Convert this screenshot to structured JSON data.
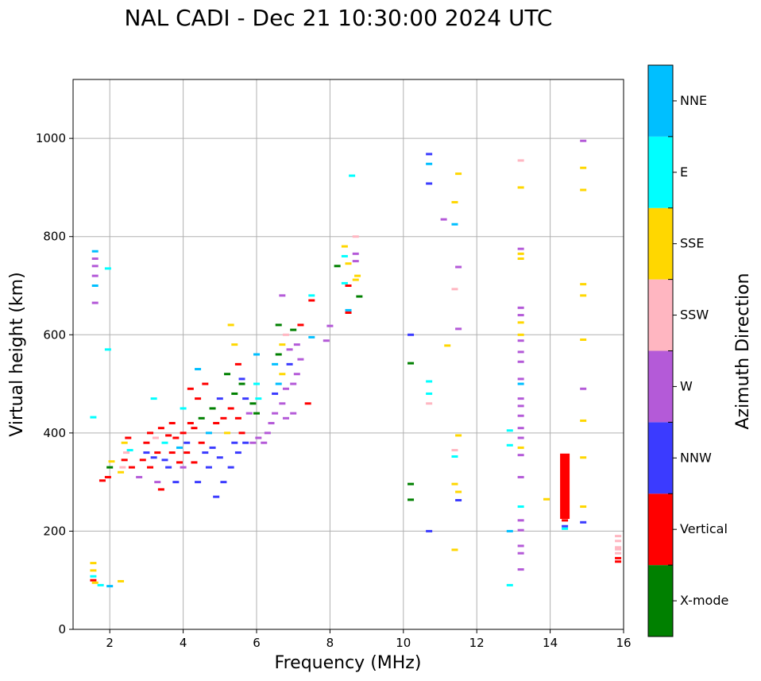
{
  "chart_data": {
    "type": "scatter",
    "title": "NAL CADI - Dec 21 10:30:00 2024 UTC",
    "xlabel": "Frequency (MHz)",
    "ylabel": "Virtual height (km)",
    "xlim": [
      1,
      16
    ],
    "ylim": [
      0,
      1120
    ],
    "xticks": [
      2,
      4,
      6,
      8,
      10,
      12,
      14,
      16
    ],
    "yticks": [
      0,
      200,
      400,
      600,
      800,
      1000
    ],
    "grid": true,
    "colorbar": {
      "label": "Azimuth Direction",
      "categories": [
        {
          "name": "X-mode",
          "color": "#008000"
        },
        {
          "name": "Vertical",
          "color": "#ff0000"
        },
        {
          "name": "NNW",
          "color": "#3b3bff"
        },
        {
          "name": "W",
          "color": "#b45ad8"
        },
        {
          "name": "SSW",
          "color": "#ffb6c1"
        },
        {
          "name": "SSE",
          "color": "#ffd700"
        },
        {
          "name": "E",
          "color": "#00ffff"
        },
        {
          "name": "NNE",
          "color": "#00bfff"
        }
      ]
    },
    "points": [
      [
        1.6,
        770,
        "NNE"
      ],
      [
        1.6,
        755,
        "W"
      ],
      [
        1.6,
        740,
        "W"
      ],
      [
        1.6,
        720,
        "W"
      ],
      [
        1.6,
        700,
        "NNE"
      ],
      [
        1.6,
        665,
        "W"
      ],
      [
        1.95,
        735,
        "E"
      ],
      [
        1.95,
        570,
        "E"
      ],
      [
        1.55,
        432,
        "E"
      ],
      [
        1.55,
        135,
        "SSE"
      ],
      [
        1.55,
        120,
        "SSE"
      ],
      [
        1.55,
        108,
        "E"
      ],
      [
        1.55,
        100,
        "Vertical"
      ],
      [
        1.6,
        95,
        "SSE"
      ],
      [
        1.75,
        90,
        "E"
      ],
      [
        2.0,
        88,
        "NNE"
      ],
      [
        2.3,
        98,
        "SSE"
      ],
      [
        1.8,
        303,
        "Vertical"
      ],
      [
        1.95,
        310,
        "Vertical"
      ],
      [
        2.0,
        330,
        "X-mode"
      ],
      [
        2.05,
        342,
        "SSE"
      ],
      [
        2.3,
        320,
        "SSE"
      ],
      [
        2.35,
        330,
        "SSW"
      ],
      [
        2.4,
        345,
        "Vertical"
      ],
      [
        2.45,
        360,
        "SSW"
      ],
      [
        2.4,
        380,
        "SSE"
      ],
      [
        2.5,
        390,
        "Vertical"
      ],
      [
        2.55,
        365,
        "E"
      ],
      [
        2.6,
        330,
        "Vertical"
      ],
      [
        2.8,
        310,
        "W"
      ],
      [
        2.9,
        345,
        "Vertical"
      ],
      [
        3.0,
        360,
        "NNW"
      ],
      [
        3.0,
        380,
        "Vertical"
      ],
      [
        3.1,
        400,
        "Vertical"
      ],
      [
        3.1,
        330,
        "Vertical"
      ],
      [
        3.2,
        350,
        "NNW"
      ],
      [
        3.25,
        390,
        "SSW"
      ],
      [
        3.3,
        360,
        "Vertical"
      ],
      [
        3.3,
        300,
        "W"
      ],
      [
        3.4,
        285,
        "Vertical"
      ],
      [
        3.4,
        410,
        "Vertical"
      ],
      [
        3.5,
        380,
        "E"
      ],
      [
        3.5,
        345,
        "NNW"
      ],
      [
        3.6,
        395,
        "Vertical"
      ],
      [
        3.6,
        330,
        "NNW"
      ],
      [
        3.7,
        360,
        "Vertical"
      ],
      [
        3.7,
        420,
        "Vertical"
      ],
      [
        3.8,
        390,
        "Vertical"
      ],
      [
        3.8,
        300,
        "NNW"
      ],
      [
        3.9,
        370,
        "NNE"
      ],
      [
        3.9,
        340,
        "Vertical"
      ],
      [
        4.0,
        400,
        "Vertical"
      ],
      [
        4.0,
        450,
        "E"
      ],
      [
        4.0,
        330,
        "W"
      ],
      [
        4.1,
        380,
        "NNW"
      ],
      [
        4.1,
        360,
        "Vertical"
      ],
      [
        4.2,
        420,
        "Vertical"
      ],
      [
        4.2,
        490,
        "Vertical"
      ],
      [
        4.3,
        340,
        "Vertical"
      ],
      [
        4.3,
        410,
        "Vertical"
      ],
      [
        4.4,
        470,
        "Vertical"
      ],
      [
        4.4,
        300,
        "NNW"
      ],
      [
        4.5,
        380,
        "Vertical"
      ],
      [
        4.5,
        430,
        "X-mode"
      ],
      [
        4.6,
        360,
        "NNW"
      ],
      [
        4.6,
        500,
        "Vertical"
      ],
      [
        4.7,
        400,
        "NNE"
      ],
      [
        4.7,
        330,
        "NNW"
      ],
      [
        4.8,
        450,
        "X-mode"
      ],
      [
        4.8,
        370,
        "NNW"
      ],
      [
        4.9,
        420,
        "Vertical"
      ],
      [
        4.9,
        270,
        "NNW"
      ],
      [
        5.0,
        470,
        "NNW"
      ],
      [
        5.0,
        350,
        "NNW"
      ],
      [
        5.1,
        430,
        "Vertical"
      ],
      [
        5.1,
        300,
        "NNW"
      ],
      [
        5.2,
        400,
        "SSE"
      ],
      [
        5.2,
        520,
        "X-mode"
      ],
      [
        5.3,
        450,
        "Vertical"
      ],
      [
        5.3,
        330,
        "NNW"
      ],
      [
        5.4,
        480,
        "X-mode"
      ],
      [
        5.4,
        380,
        "NNW"
      ],
      [
        5.5,
        430,
        "Vertical"
      ],
      [
        5.5,
        360,
        "NNW"
      ],
      [
        5.6,
        500,
        "X-mode"
      ],
      [
        5.6,
        400,
        "Vertical"
      ],
      [
        5.7,
        470,
        "NNW"
      ],
      [
        5.7,
        380,
        "NNW"
      ],
      [
        5.8,
        440,
        "W"
      ],
      [
        5.9,
        460,
        "X-mode"
      ],
      [
        5.9,
        380,
        "W"
      ],
      [
        6.0,
        560,
        "NNE"
      ],
      [
        6.0,
        500,
        "E"
      ],
      [
        6.05,
        470,
        "E"
      ],
      [
        6.0,
        440,
        "X-mode"
      ],
      [
        6.05,
        390,
        "W"
      ],
      [
        3.2,
        470,
        "E"
      ],
      [
        4.4,
        530,
        "NNE"
      ],
      [
        5.3,
        620,
        "SSE"
      ],
      [
        5.4,
        580,
        "SSE"
      ],
      [
        5.5,
        540,
        "Vertical"
      ],
      [
        5.6,
        510,
        "NNW"
      ],
      [
        6.2,
        380,
        "W"
      ],
      [
        6.3,
        400,
        "W"
      ],
      [
        6.4,
        420,
        "W"
      ],
      [
        6.5,
        440,
        "W"
      ],
      [
        6.5,
        480,
        "NNW"
      ],
      [
        6.5,
        540,
        "NNE"
      ],
      [
        6.6,
        500,
        "NNE"
      ],
      [
        6.6,
        560,
        "X-mode"
      ],
      [
        6.6,
        620,
        "X-mode"
      ],
      [
        6.7,
        460,
        "W"
      ],
      [
        6.7,
        520,
        "SSE"
      ],
      [
        6.7,
        580,
        "SSE"
      ],
      [
        6.7,
        680,
        "W"
      ],
      [
        6.8,
        430,
        "W"
      ],
      [
        6.8,
        490,
        "W"
      ],
      [
        6.8,
        600,
        "SSW"
      ],
      [
        6.9,
        540,
        "NNW"
      ],
      [
        6.9,
        570,
        "W"
      ],
      [
        7.0,
        500,
        "W"
      ],
      [
        7.0,
        440,
        "W"
      ],
      [
        7.0,
        610,
        "X-mode"
      ],
      [
        7.1,
        580,
        "W"
      ],
      [
        7.1,
        520,
        "W"
      ],
      [
        7.2,
        550,
        "W"
      ],
      [
        7.2,
        620,
        "Vertical"
      ],
      [
        7.4,
        460,
        "Vertical"
      ],
      [
        7.5,
        595,
        "NNE"
      ],
      [
        7.5,
        680,
        "E"
      ],
      [
        7.5,
        670,
        "Vertical"
      ],
      [
        8.0,
        618,
        "W"
      ],
      [
        7.9,
        588,
        "W"
      ],
      [
        8.2,
        740,
        "X-mode"
      ],
      [
        8.4,
        780,
        "SSE"
      ],
      [
        8.4,
        760,
        "E"
      ],
      [
        8.5,
        745,
        "SSE"
      ],
      [
        8.5,
        700,
        "Vertical"
      ],
      [
        8.4,
        705,
        "E"
      ],
      [
        8.5,
        650,
        "NNE"
      ],
      [
        8.5,
        645,
        "Vertical"
      ],
      [
        8.7,
        800,
        "SSW"
      ],
      [
        8.7,
        765,
        "W"
      ],
      [
        8.7,
        750,
        "W"
      ],
      [
        8.75,
        720,
        "SSE"
      ],
      [
        8.7,
        712,
        "SSE"
      ],
      [
        8.8,
        678,
        "X-mode"
      ],
      [
        8.6,
        924,
        "E"
      ],
      [
        10.2,
        600,
        "NNW"
      ],
      [
        10.2,
        542,
        "X-mode"
      ],
      [
        10.2,
        296,
        "X-mode"
      ],
      [
        10.2,
        264,
        "X-mode"
      ],
      [
        10.7,
        968,
        "NNW"
      ],
      [
        10.7,
        948,
        "NNE"
      ],
      [
        10.7,
        908,
        "NNW"
      ],
      [
        10.7,
        505,
        "E"
      ],
      [
        10.7,
        480,
        "E"
      ],
      [
        10.7,
        460,
        "SSW"
      ],
      [
        10.7,
        200,
        "NNW"
      ],
      [
        11.1,
        835,
        "W"
      ],
      [
        11.2,
        578,
        "SSE"
      ],
      [
        11.5,
        928,
        "SSE"
      ],
      [
        11.4,
        870,
        "SSE"
      ],
      [
        11.4,
        825,
        "NNE"
      ],
      [
        11.5,
        738,
        "W"
      ],
      [
        11.4,
        693,
        "SSW"
      ],
      [
        11.5,
        612,
        "W"
      ],
      [
        11.5,
        395,
        "SSE"
      ],
      [
        11.4,
        365,
        "SSW"
      ],
      [
        11.4,
        352,
        "E"
      ],
      [
        11.4,
        296,
        "SSE"
      ],
      [
        11.5,
        280,
        "SSE"
      ],
      [
        11.5,
        263,
        "NNW"
      ],
      [
        11.4,
        162,
        "SSE"
      ],
      [
        12.9,
        405,
        "E"
      ],
      [
        12.9,
        375,
        "E"
      ],
      [
        12.9,
        200,
        "NNE"
      ],
      [
        12.9,
        90,
        "E"
      ],
      [
        13.2,
        955,
        "SSW"
      ],
      [
        13.2,
        900,
        "SSE"
      ],
      [
        13.2,
        775,
        "W"
      ],
      [
        13.2,
        765,
        "SSE"
      ],
      [
        13.2,
        755,
        "SSE"
      ],
      [
        13.2,
        655,
        "W"
      ],
      [
        13.2,
        640,
        "W"
      ],
      [
        13.2,
        625,
        "SSE"
      ],
      [
        13.2,
        600,
        "SSE"
      ],
      [
        13.2,
        588,
        "W"
      ],
      [
        13.2,
        565,
        "W"
      ],
      [
        13.2,
        545,
        "W"
      ],
      [
        13.2,
        510,
        "W"
      ],
      [
        13.2,
        500,
        "NNE"
      ],
      [
        13.2,
        470,
        "W"
      ],
      [
        13.2,
        455,
        "W"
      ],
      [
        13.2,
        435,
        "W"
      ],
      [
        13.2,
        410,
        "W"
      ],
      [
        13.2,
        390,
        "W"
      ],
      [
        13.2,
        370,
        "SSE"
      ],
      [
        13.2,
        355,
        "W"
      ],
      [
        13.2,
        310,
        "W"
      ],
      [
        13.2,
        250,
        "E"
      ],
      [
        13.2,
        222,
        "W"
      ],
      [
        13.2,
        202,
        "W"
      ],
      [
        13.2,
        170,
        "W"
      ],
      [
        13.2,
        155,
        "W"
      ],
      [
        13.2,
        122,
        "W"
      ],
      [
        13.9,
        265,
        "SSE"
      ],
      [
        14.4,
        210,
        "NNW"
      ],
      [
        14.4,
        205,
        "E"
      ],
      [
        14.4,
        222,
        "Vertical"
      ],
      [
        14.4,
        245,
        "X-mode"
      ],
      [
        14.4,
        258,
        "X-mode"
      ],
      [
        14.9,
        995,
        "W"
      ],
      [
        14.9,
        940,
        "SSE"
      ],
      [
        14.9,
        895,
        "SSE"
      ],
      [
        14.9,
        703,
        "SSE"
      ],
      [
        14.9,
        680,
        "SSE"
      ],
      [
        14.9,
        590,
        "SSE"
      ],
      [
        14.9,
        490,
        "W"
      ],
      [
        14.9,
        425,
        "SSE"
      ],
      [
        14.9,
        350,
        "SSE"
      ],
      [
        14.9,
        250,
        "SSE"
      ],
      [
        14.9,
        218,
        "NNW"
      ],
      [
        15.85,
        190,
        "SSW"
      ],
      [
        15.85,
        180,
        "SSW"
      ],
      [
        15.85,
        167,
        "SSW"
      ],
      [
        15.85,
        163,
        "SSW"
      ],
      [
        15.85,
        155,
        "SSW"
      ],
      [
        15.85,
        145,
        "Vertical"
      ],
      [
        15.85,
        138,
        "Vertical"
      ]
    ],
    "bars": [
      {
        "x": 14.4,
        "ymin": 225,
        "ymax": 358,
        "azimuth": "Vertical"
      }
    ]
  }
}
